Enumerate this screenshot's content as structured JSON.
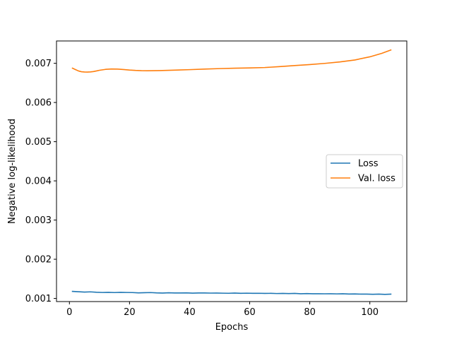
{
  "chart_data": {
    "type": "line",
    "title": "",
    "xlabel": "Epochs",
    "ylabel": "Negative log-likelihood",
    "xlim": [
      -4.3,
      112.3
    ],
    "ylim": [
      0.00092,
      0.00757
    ],
    "xticks": [
      0,
      20,
      40,
      60,
      80,
      100
    ],
    "xtick_labels": [
      "0",
      "20",
      "40",
      "60",
      "80",
      "100"
    ],
    "yticks": [
      0.001,
      0.002,
      0.003,
      0.004,
      0.005,
      0.006,
      0.007
    ],
    "ytick_labels": [
      "0.001",
      "0.002",
      "0.003",
      "0.004",
      "0.005",
      "0.006",
      "0.007"
    ],
    "grid": false,
    "legend_position": "center-right",
    "series": [
      {
        "name": "Loss",
        "color": "#1f77b4",
        "x": [
          1,
          3,
          5,
          7,
          9,
          11,
          13,
          15,
          17,
          19,
          21,
          23,
          25,
          27,
          29,
          31,
          33,
          35,
          37,
          39,
          41,
          43,
          45,
          47,
          49,
          51,
          53,
          55,
          57,
          59,
          61,
          63,
          65,
          67,
          69,
          71,
          73,
          75,
          77,
          79,
          81,
          83,
          85,
          87,
          89,
          91,
          93,
          95,
          97,
          99,
          101,
          103,
          105,
          107
        ],
        "y": [
          0.00118,
          0.001172,
          0.001162,
          0.001168,
          0.001158,
          0.001152,
          0.001156,
          0.00115,
          0.001156,
          0.001152,
          0.00115,
          0.001142,
          0.001146,
          0.00115,
          0.001142,
          0.001138,
          0.001144,
          0.00114,
          0.00114,
          0.001142,
          0.001135,
          0.00114,
          0.00114,
          0.001136,
          0.001138,
          0.001134,
          0.001132,
          0.001138,
          0.00113,
          0.001134,
          0.00113,
          0.001132,
          0.001128,
          0.00113,
          0.001125,
          0.001128,
          0.001124,
          0.001128,
          0.00112,
          0.001124,
          0.00112,
          0.00112,
          0.001118,
          0.00112,
          0.001116,
          0.00112,
          0.001112,
          0.001115,
          0.00111,
          0.00111,
          0.001106,
          0.00111,
          0.001104,
          0.00111
        ]
      },
      {
        "name": "Val. loss",
        "color": "#ff7f0e",
        "x": [
          1,
          2,
          3,
          4,
          5,
          6,
          7,
          8,
          9,
          10,
          12,
          14,
          16,
          18,
          20,
          22,
          24,
          26,
          28,
          30,
          35,
          40,
          45,
          50,
          55,
          60,
          65,
          70,
          75,
          80,
          85,
          90,
          95,
          100,
          104,
          107
        ],
        "y": [
          0.006876,
          0.00684,
          0.006805,
          0.006785,
          0.006778,
          0.006776,
          0.00678,
          0.00679,
          0.006805,
          0.006822,
          0.006845,
          0.006855,
          0.006852,
          0.006842,
          0.006828,
          0.006818,
          0.006812,
          0.00681,
          0.006812,
          0.006815,
          0.006825,
          0.006838,
          0.006852,
          0.006865,
          0.006875,
          0.006882,
          0.006892,
          0.006915,
          0.006942,
          0.006968,
          0.006998,
          0.007035,
          0.007085,
          0.007165,
          0.007255,
          0.00734
        ]
      }
    ]
  }
}
